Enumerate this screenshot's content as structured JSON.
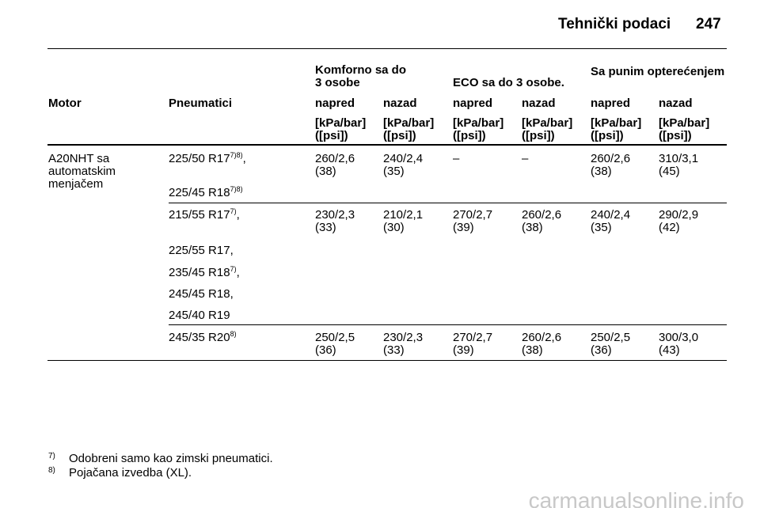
{
  "header": {
    "title": "Tehnički podaci",
    "page": "247"
  },
  "table": {
    "headers": {
      "motor": "Motor",
      "tires": "Pneumatici",
      "groups": [
        [
          "Komforno sa do",
          "3 osobe"
        ],
        [
          "ECO sa do 3 osobe."
        ],
        [
          "Sa punim opterećenjem"
        ]
      ],
      "sub": [
        "napred",
        "nazad",
        "napred",
        "nazad",
        "napred",
        "nazad"
      ],
      "units": [
        [
          "[kPa/bar]",
          "([psi])"
        ],
        [
          "[kPa/bar]",
          "([psi])"
        ],
        [
          "[kPa/bar]",
          "([psi])"
        ],
        [
          "[kPa/bar]",
          "([psi])"
        ],
        [
          "[kPa/bar]",
          "([psi])"
        ],
        [
          "[kPa/bar]",
          "([psi])"
        ]
      ]
    },
    "motor": [
      "A20NHT sa",
      "automatskim",
      "menjačem"
    ],
    "rows": [
      {
        "tires": [
          {
            "text": "225/50 R17",
            "sup": "7)8)",
            "suffix": ","
          },
          {
            "text": "225/45 R18",
            "sup": "7)8)"
          }
        ],
        "values": [
          [
            "260/2,6",
            "(38)"
          ],
          [
            "240/2,4",
            "(35)"
          ],
          [
            "–"
          ],
          [
            "–"
          ],
          [
            "260/2,6",
            "(38)"
          ],
          [
            "310/3,1",
            "(45)"
          ]
        ]
      },
      {
        "tires": [
          {
            "text": "215/55 R17",
            "sup": "7)",
            "suffix": ","
          },
          {
            "text": "225/55 R17,"
          },
          {
            "text": "235/45 R18",
            "sup": "7)",
            "suffix": ","
          },
          {
            "text": "245/45 R18,"
          },
          {
            "text": "245/40 R19"
          }
        ],
        "values": [
          [
            "230/2,3",
            "(33)"
          ],
          [
            "210/2,1",
            "(30)"
          ],
          [
            "270/2,7",
            "(39)"
          ],
          [
            "260/2,6",
            "(38)"
          ],
          [
            "240/2,4",
            "(35)"
          ],
          [
            "290/2,9",
            "(42)"
          ]
        ]
      },
      {
        "tires": [
          {
            "text": "245/35 R20",
            "sup": "8)"
          }
        ],
        "values": [
          [
            "250/2,5",
            "(36)"
          ],
          [
            "230/2,3",
            "(33)"
          ],
          [
            "270/2,7",
            "(39)"
          ],
          [
            "260/2,6",
            "(38)"
          ],
          [
            "250/2,5",
            "(36)"
          ],
          [
            "300/3,0",
            "(43)"
          ]
        ]
      }
    ]
  },
  "footnotes": [
    {
      "mark": "7)",
      "text": "Odobreni samo kao zimski pneumatici."
    },
    {
      "mark": "8)",
      "text": "Pojačana izvedba (XL)."
    }
  ],
  "watermark": "carmanualsonline.info"
}
